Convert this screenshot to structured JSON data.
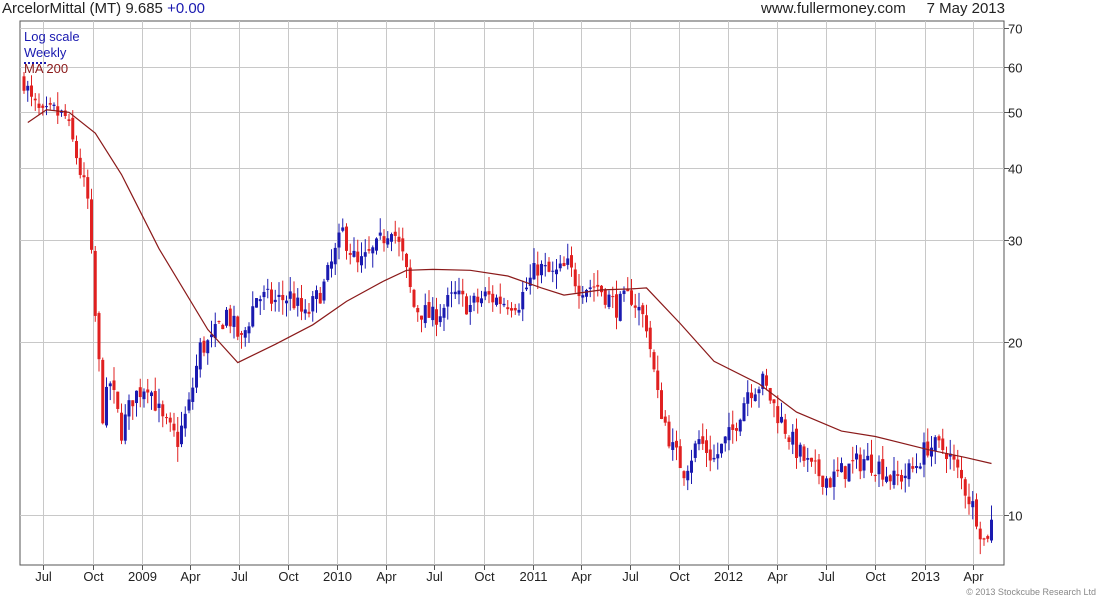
{
  "header": {
    "symbol": "ArcelorMittal (MT)",
    "price": "9.685",
    "change": "+0.00",
    "site": "www.fullermoney.com",
    "date": "7 May 2013"
  },
  "legend": {
    "scale": "Log scale",
    "period": "Weekly",
    "ma": "MA 200"
  },
  "copyright": "© 2013 Stockcube Research Ltd",
  "colors": {
    "up": "#1a1ab0",
    "down": "#e02020",
    "ma": "#8b1a1a",
    "grid": "#c8c8c8"
  },
  "chart_data": {
    "type": "candlestick",
    "y_scale": "log",
    "ylim": [
      8.2,
      72
    ],
    "y_ticks": [
      10,
      20,
      30,
      40,
      50,
      60,
      70
    ],
    "x_ticks": [
      "Jul",
      "Oct",
      "2009",
      "Apr",
      "Jul",
      "Oct",
      "2010",
      "Apr",
      "Jul",
      "Oct",
      "2011",
      "Apr",
      "Jul",
      "Oct",
      "2012",
      "Apr",
      "Jul",
      "Oct",
      "2013",
      "Apr"
    ],
    "x_range": [
      "2008-05-26",
      "2013-05-20"
    ],
    "grid": true,
    "series": [
      {
        "name": "MA 200",
        "type": "line",
        "points": [
          [
            "2008-06-02",
            48
          ],
          [
            "2008-07-07",
            50.5
          ],
          [
            "2008-08-18",
            50
          ],
          [
            "2008-10-06",
            46
          ],
          [
            "2008-11-24",
            39
          ],
          [
            "2009-02-02",
            29
          ],
          [
            "2009-05-04",
            21
          ],
          [
            "2009-06-29",
            18.4
          ],
          [
            "2009-09-07",
            19.8
          ],
          [
            "2009-11-16",
            21.4
          ],
          [
            "2010-01-18",
            23.5
          ],
          [
            "2010-03-29",
            25.5
          ],
          [
            "2010-05-10",
            26.6
          ],
          [
            "2010-06-28",
            26.7
          ],
          [
            "2010-09-06",
            26.6
          ],
          [
            "2010-11-15",
            26.0
          ],
          [
            "2011-01-17",
            24.8
          ],
          [
            "2011-02-28",
            24.1
          ],
          [
            "2011-05-09",
            24.6
          ],
          [
            "2011-07-04",
            24.7
          ],
          [
            "2011-08-01",
            24.8
          ],
          [
            "2011-10-03",
            21.5
          ],
          [
            "2011-12-05",
            18.5
          ],
          [
            "2012-02-27",
            16.9
          ],
          [
            "2012-05-07",
            15.1
          ],
          [
            "2012-07-30",
            14.0
          ],
          [
            "2012-10-01",
            13.7
          ],
          [
            "2013-01-07",
            13.0
          ],
          [
            "2013-03-18",
            12.6
          ],
          [
            "2013-05-06",
            12.3
          ]
        ]
      },
      {
        "name": "Weekly",
        "type": "candlestick",
        "anchors": [
          [
            "2008-05-26",
            57
          ],
          [
            "2008-06-09",
            52
          ],
          [
            "2008-06-30",
            49
          ],
          [
            "2008-07-21",
            50
          ],
          [
            "2008-08-11",
            49
          ],
          [
            "2008-09-01",
            42
          ],
          [
            "2008-09-22",
            35
          ],
          [
            "2008-10-06",
            22
          ],
          [
            "2008-10-20",
            15
          ],
          [
            "2008-11-03",
            17
          ],
          [
            "2008-11-24",
            14
          ],
          [
            "2008-12-15",
            16
          ],
          [
            "2009-01-12",
            17
          ],
          [
            "2009-02-09",
            14.5
          ],
          [
            "2009-03-09",
            13.5
          ],
          [
            "2009-03-30",
            15.5
          ],
          [
            "2009-04-20",
            19.5
          ],
          [
            "2009-05-11",
            20
          ],
          [
            "2009-06-08",
            22.5
          ],
          [
            "2009-07-06",
            20
          ],
          [
            "2009-08-03",
            24
          ],
          [
            "2009-09-07",
            23.5
          ],
          [
            "2009-10-05",
            24
          ],
          [
            "2009-11-02",
            22
          ],
          [
            "2009-12-07",
            25
          ],
          [
            "2010-01-11",
            31
          ],
          [
            "2010-02-08",
            27
          ],
          [
            "2010-03-15",
            29
          ],
          [
            "2010-04-12",
            32
          ],
          [
            "2010-05-03",
            28
          ],
          [
            "2010-05-24",
            23
          ],
          [
            "2010-06-28",
            22
          ],
          [
            "2010-08-09",
            24
          ],
          [
            "2010-09-06",
            23
          ],
          [
            "2010-10-04",
            24
          ],
          [
            "2010-11-08",
            23.5
          ],
          [
            "2010-12-06",
            23.5
          ],
          [
            "2011-01-10",
            27
          ],
          [
            "2011-02-07",
            26
          ],
          [
            "2011-03-07",
            27
          ],
          [
            "2011-03-28",
            25
          ],
          [
            "2011-05-02",
            25
          ],
          [
            "2011-06-06",
            23
          ],
          [
            "2011-07-04",
            24
          ],
          [
            "2011-08-01",
            21.5
          ],
          [
            "2011-08-22",
            16
          ],
          [
            "2011-09-19",
            13
          ],
          [
            "2011-10-10",
            12
          ],
          [
            "2011-11-07",
            13.5
          ],
          [
            "2011-12-05",
            12.5
          ],
          [
            "2012-01-09",
            14
          ],
          [
            "2012-02-06",
            16.5
          ],
          [
            "2012-03-05",
            17
          ],
          [
            "2012-04-02",
            15
          ],
          [
            "2012-05-07",
            13
          ],
          [
            "2012-06-04",
            12
          ],
          [
            "2012-07-09",
            11.5
          ],
          [
            "2012-08-06",
            12
          ],
          [
            "2012-09-10",
            12.5
          ],
          [
            "2012-10-08",
            12.2
          ],
          [
            "2012-11-05",
            11.5
          ],
          [
            "2012-12-10",
            12
          ],
          [
            "2013-01-07",
            13.2
          ],
          [
            "2013-02-11",
            13
          ],
          [
            "2013-03-11",
            11.5
          ],
          [
            "2013-04-08",
            10
          ],
          [
            "2013-04-22",
            9.0
          ],
          [
            "2013-05-06",
            9.7
          ]
        ]
      }
    ]
  }
}
